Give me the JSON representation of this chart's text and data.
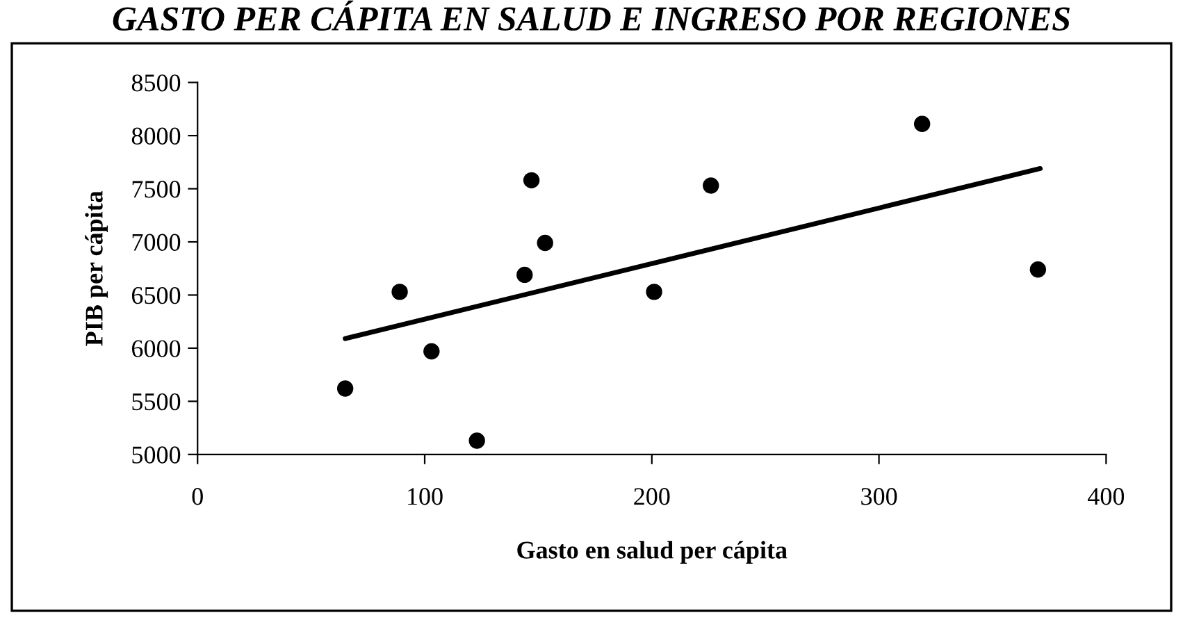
{
  "chart_data": {
    "type": "scatter",
    "title": "GASTO PER CÁPITA EN SALUD E INGRESO POR REGIONES",
    "xlabel": "Gasto en salud per cápita",
    "ylabel": "PIB per cápita",
    "series": [
      {
        "color": "#000000",
        "marker": "circle",
        "x": [
          65,
          89,
          103,
          123,
          144,
          147,
          153,
          201,
          226,
          319,
          370
        ],
        "values": [
          5620,
          6530,
          5970,
          5130,
          6690,
          7580,
          6990,
          6530,
          7530,
          8110,
          6740
        ]
      },
      {
        "type": "line",
        "color": "#000000",
        "marker": "none",
        "x": [
          65,
          371
        ],
        "values": [
          6090,
          7690
        ]
      }
    ],
    "xlim": [
      0,
      400
    ],
    "xticks": [
      0,
      100,
      200,
      300,
      400
    ],
    "ylim": [
      5000,
      8500
    ],
    "yticks": [
      5000,
      5500,
      6000,
      6500,
      7000,
      7500,
      8000,
      8500
    ],
    "grid": false,
    "legend": false
  }
}
